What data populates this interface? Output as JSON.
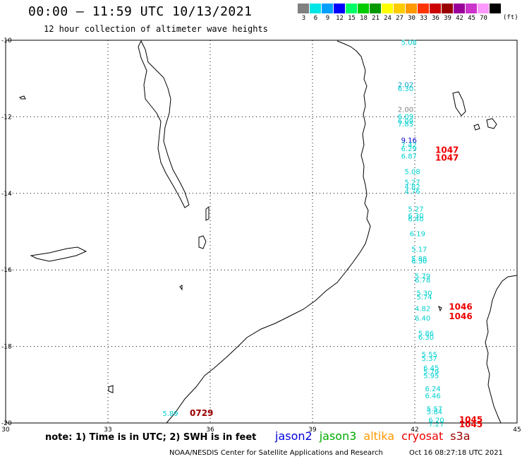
{
  "header": {
    "title": "00:00 – 11:59 UTC 10/13/2021",
    "subtitle": "12 hour collection of altimeter wave heights"
  },
  "legend": {
    "colors": [
      "#808080",
      "#00e5e5",
      "#00a0ff",
      "#0000ff",
      "#00ff66",
      "#00cc00",
      "#009900",
      "#ffff00",
      "#ffcc00",
      "#ff9900",
      "#ff3300",
      "#cc0000",
      "#990000",
      "#990099",
      "#cc33cc",
      "#ff99ff",
      "#000000"
    ],
    "labels": [
      "3",
      "6",
      "9",
      "12",
      "15",
      "18",
      "21",
      "24",
      "27",
      "30",
      "33",
      "36",
      "39",
      "42",
      "45",
      "70"
    ],
    "unit": "(ft)"
  },
  "axes": {
    "lat_ticks": [
      "-10",
      "-12",
      "-14",
      "-16",
      "-18",
      "-20"
    ],
    "lon_ticks": [
      "30",
      "33",
      "36",
      "39",
      "42",
      "45"
    ]
  },
  "wave_labels": [
    {
      "lon": 41.6,
      "lat": -10.05,
      "text": "5.08",
      "color": "#00d0d0"
    },
    {
      "lon": 41.5,
      "lat": -11.15,
      "text": "2.02",
      "color": "#00a0c8"
    },
    {
      "lon": 41.5,
      "lat": -11.25,
      "text": "6.30",
      "color": "#00d0d0"
    },
    {
      "lon": 41.5,
      "lat": -11.8,
      "text": "2.00",
      "color": "#808080"
    },
    {
      "lon": 41.5,
      "lat": -11.98,
      "text": "6.09",
      "color": "#00d0d0"
    },
    {
      "lon": 41.5,
      "lat": -12.1,
      "text": "6.09",
      "color": "#00d0d0"
    },
    {
      "lon": 41.5,
      "lat": -12.18,
      "text": "7.85",
      "color": "#00d0d0"
    },
    {
      "lon": 41.6,
      "lat": -12.6,
      "text": "9.16",
      "color": "#0000cc"
    },
    {
      "lon": 41.6,
      "lat": -12.72,
      "text": "7.42",
      "color": "#00d0d0"
    },
    {
      "lon": 41.6,
      "lat": -12.82,
      "text": "6.29",
      "color": "#00d0d0"
    },
    {
      "lon": 41.6,
      "lat": -13.02,
      "text": "6.87",
      "color": "#00d0d0"
    },
    {
      "lon": 41.7,
      "lat": -13.42,
      "text": "5.08",
      "color": "#00d0d0"
    },
    {
      "lon": 41.7,
      "lat": -13.7,
      "text": "5.27",
      "color": "#00d0d0"
    },
    {
      "lon": 41.7,
      "lat": -13.82,
      "text": "4.82",
      "color": "#00d0d0"
    },
    {
      "lon": 41.7,
      "lat": -13.94,
      "text": "4.76",
      "color": "#00d0d0"
    },
    {
      "lon": 41.8,
      "lat": -14.4,
      "text": "5.27",
      "color": "#00d0d0"
    },
    {
      "lon": 41.8,
      "lat": -14.58,
      "text": "6.30",
      "color": "#00d0d0"
    },
    {
      "lon": 41.8,
      "lat": -14.66,
      "text": "6.40",
      "color": "#00d0d0"
    },
    {
      "lon": 41.85,
      "lat": -15.05,
      "text": "6.19",
      "color": "#00d0d0"
    },
    {
      "lon": 41.9,
      "lat": -15.45,
      "text": "5.17",
      "color": "#00d0d0"
    },
    {
      "lon": 41.9,
      "lat": -15.7,
      "text": "5.88",
      "color": "#00d0d0"
    },
    {
      "lon": 41.9,
      "lat": -15.76,
      "text": "6.30",
      "color": "#00d0d0"
    },
    {
      "lon": 42.0,
      "lat": -16.15,
      "text": "5.79",
      "color": "#00d0d0"
    },
    {
      "lon": 42.0,
      "lat": -16.25,
      "text": "6.78",
      "color": "#00d0d0"
    },
    {
      "lon": 42.05,
      "lat": -16.6,
      "text": "5.30",
      "color": "#00d0d0"
    },
    {
      "lon": 42.05,
      "lat": -16.7,
      "text": "5.74",
      "color": "#00d0d0"
    },
    {
      "lon": 42.0,
      "lat": -17.0,
      "text": "4.82",
      "color": "#00d0d0"
    },
    {
      "lon": 42.0,
      "lat": -17.25,
      "text": "6.40",
      "color": "#00d0d0"
    },
    {
      "lon": 42.1,
      "lat": -17.65,
      "text": "5.86",
      "color": "#00d0d0"
    },
    {
      "lon": 42.1,
      "lat": -17.75,
      "text": "6.30",
      "color": "#00d0d0"
    },
    {
      "lon": 42.2,
      "lat": -18.2,
      "text": "5.55",
      "color": "#00d0d0"
    },
    {
      "lon": 42.2,
      "lat": -18.3,
      "text": "5.37",
      "color": "#00d0d0"
    },
    {
      "lon": 42.25,
      "lat": -18.55,
      "text": "6.45",
      "color": "#00d0d0"
    },
    {
      "lon": 42.25,
      "lat": -18.65,
      "text": "5.79",
      "color": "#00d0d0"
    },
    {
      "lon": 42.25,
      "lat": -18.75,
      "text": "5.95",
      "color": "#00d0d0"
    },
    {
      "lon": 42.3,
      "lat": -19.1,
      "text": "6.24",
      "color": "#00d0d0"
    },
    {
      "lon": 42.3,
      "lat": -19.28,
      "text": "6.46",
      "color": "#00d0d0"
    },
    {
      "lon": 42.35,
      "lat": -19.62,
      "text": "5.57",
      "color": "#00d0d0"
    },
    {
      "lon": 42.35,
      "lat": -19.7,
      "text": "5.84",
      "color": "#00d0d0"
    },
    {
      "lon": 42.4,
      "lat": -19.92,
      "text": "6.20",
      "color": "#00d0d0"
    },
    {
      "lon": 42.4,
      "lat": -20.02,
      "text": "7.27",
      "color": "#00d0d0"
    },
    {
      "lon": 34.6,
      "lat": -19.74,
      "text": "5.89",
      "color": "#00d0d0"
    }
  ],
  "time_labels": [
    {
      "lon": 42.6,
      "lat": -12.85,
      "text": "1047",
      "color": "#ee0000"
    },
    {
      "lon": 42.6,
      "lat": -13.05,
      "text": "1047",
      "color": "#ee0000"
    },
    {
      "lon": 43.0,
      "lat": -16.95,
      "text": "1046",
      "color": "#ee0000"
    },
    {
      "lon": 43.0,
      "lat": -17.2,
      "text": "1046",
      "color": "#ee0000"
    },
    {
      "lon": 43.3,
      "lat": -19.9,
      "text": "1045",
      "color": "#ee0000"
    },
    {
      "lon": 43.3,
      "lat": -20.02,
      "text": "1045",
      "color": "#ee0000"
    },
    {
      "lon": 35.4,
      "lat": -19.72,
      "text": "0729",
      "color": "#990000"
    }
  ],
  "note": "note: 1) Time is in UTC; 2) SWH is in feet",
  "satellites": [
    {
      "name": "jason2",
      "color": "#0000dd"
    },
    {
      "name": "jason3",
      "color": "#00aa00"
    },
    {
      "name": "altika",
      "color": "#ff9900"
    },
    {
      "name": "cryosat",
      "color": "#ee0000"
    },
    {
      "name": "s3a",
      "color": "#990000"
    }
  ],
  "footer": {
    "agency": "NOAA/NESDIS Center for Satellite Applications and Research",
    "timestamp": "Oct 16 08:27:18 UTC 2021"
  }
}
